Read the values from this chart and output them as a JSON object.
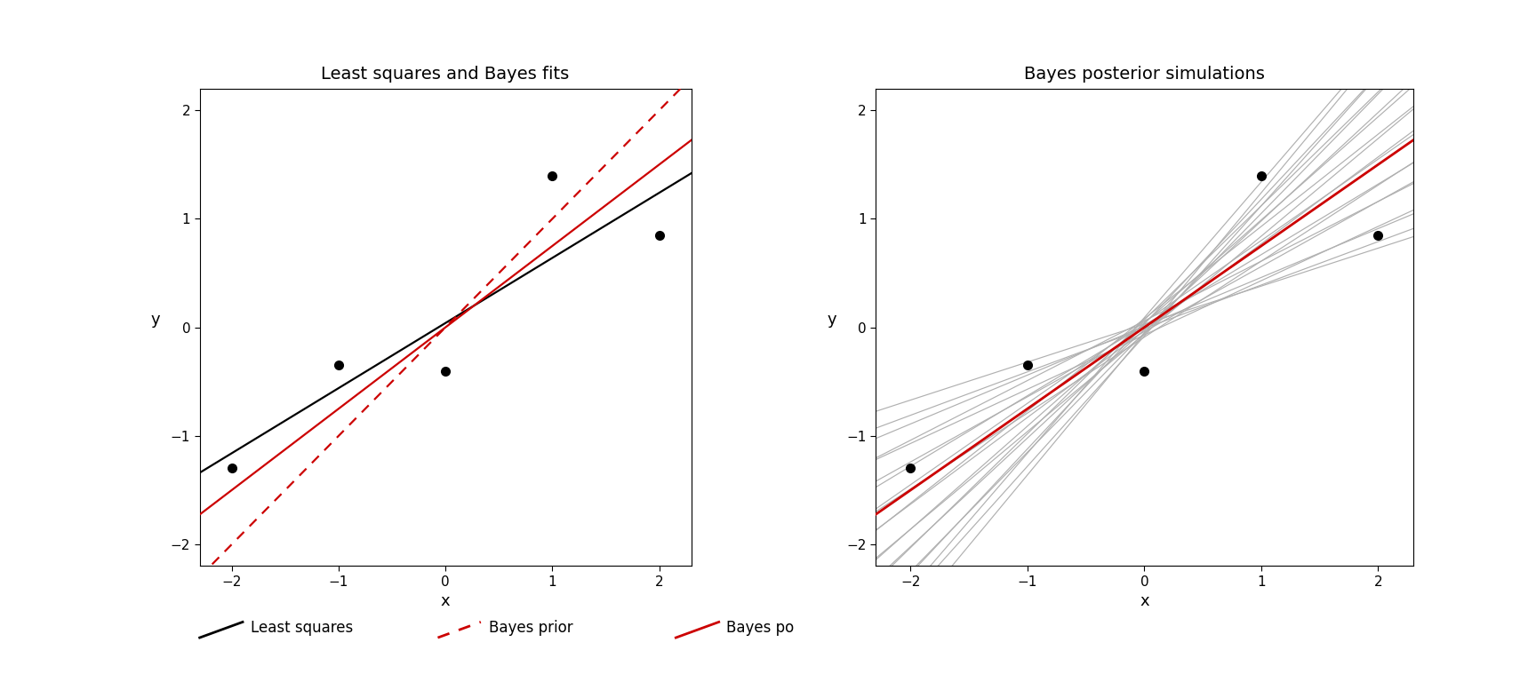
{
  "data_x": [
    -2.0,
    -1.0,
    0.0,
    1.0,
    2.0
  ],
  "data_y": [
    -1.3,
    -0.35,
    -0.4,
    1.4,
    0.85
  ],
  "ls_intercept": 0.04,
  "ls_slope": 0.6,
  "bayes_post_intercept": 0.0,
  "bayes_post_slope": 0.75,
  "bayes_prior_intercept": 0.0,
  "bayes_prior_slope": 1.0,
  "posterior_sim_slopes": [
    0.75,
    0.8,
    0.85,
    0.9,
    0.95,
    1.0,
    1.05,
    1.1,
    1.15,
    1.2,
    0.65,
    0.6,
    0.55,
    0.5,
    0.45,
    0.4,
    0.7,
    1.25,
    0.35,
    1.3
  ],
  "posterior_sim_intercepts": [
    0.05,
    -0.03,
    0.08,
    -0.06,
    0.04,
    -0.02,
    0.07,
    -0.05,
    0.03,
    -0.08,
    0.02,
    -0.04,
    0.06,
    -0.07,
    0.01,
    -0.01,
    -0.09,
    0.09,
    0.03,
    -0.06
  ],
  "xlim": [
    -2.3,
    2.3
  ],
  "ylim": [
    -2.2,
    2.2
  ],
  "xticks": [
    -2,
    -1,
    0,
    1,
    2
  ],
  "yticks": [
    -2,
    -1,
    0,
    1,
    2
  ],
  "xlabel": "x",
  "ylabel": "y",
  "title_left": "Least squares and Bayes fits",
  "title_right": "Bayes posterior simulations",
  "legend_labels": [
    "Least squares",
    "Bayes prior",
    "Bayes po"
  ],
  "color_ls": "#000000",
  "color_bayes_prior": "#cc0000",
  "color_bayes_post": "#cc0000",
  "color_sim": "#b0b0b0",
  "color_data": "#000000",
  "background_color": "#ffffff",
  "title_fontsize": 14,
  "axis_label_fontsize": 13,
  "tick_fontsize": 11,
  "legend_fontsize": 12,
  "data_markersize": 8,
  "line_lw": 1.6,
  "sim_lw": 0.85
}
